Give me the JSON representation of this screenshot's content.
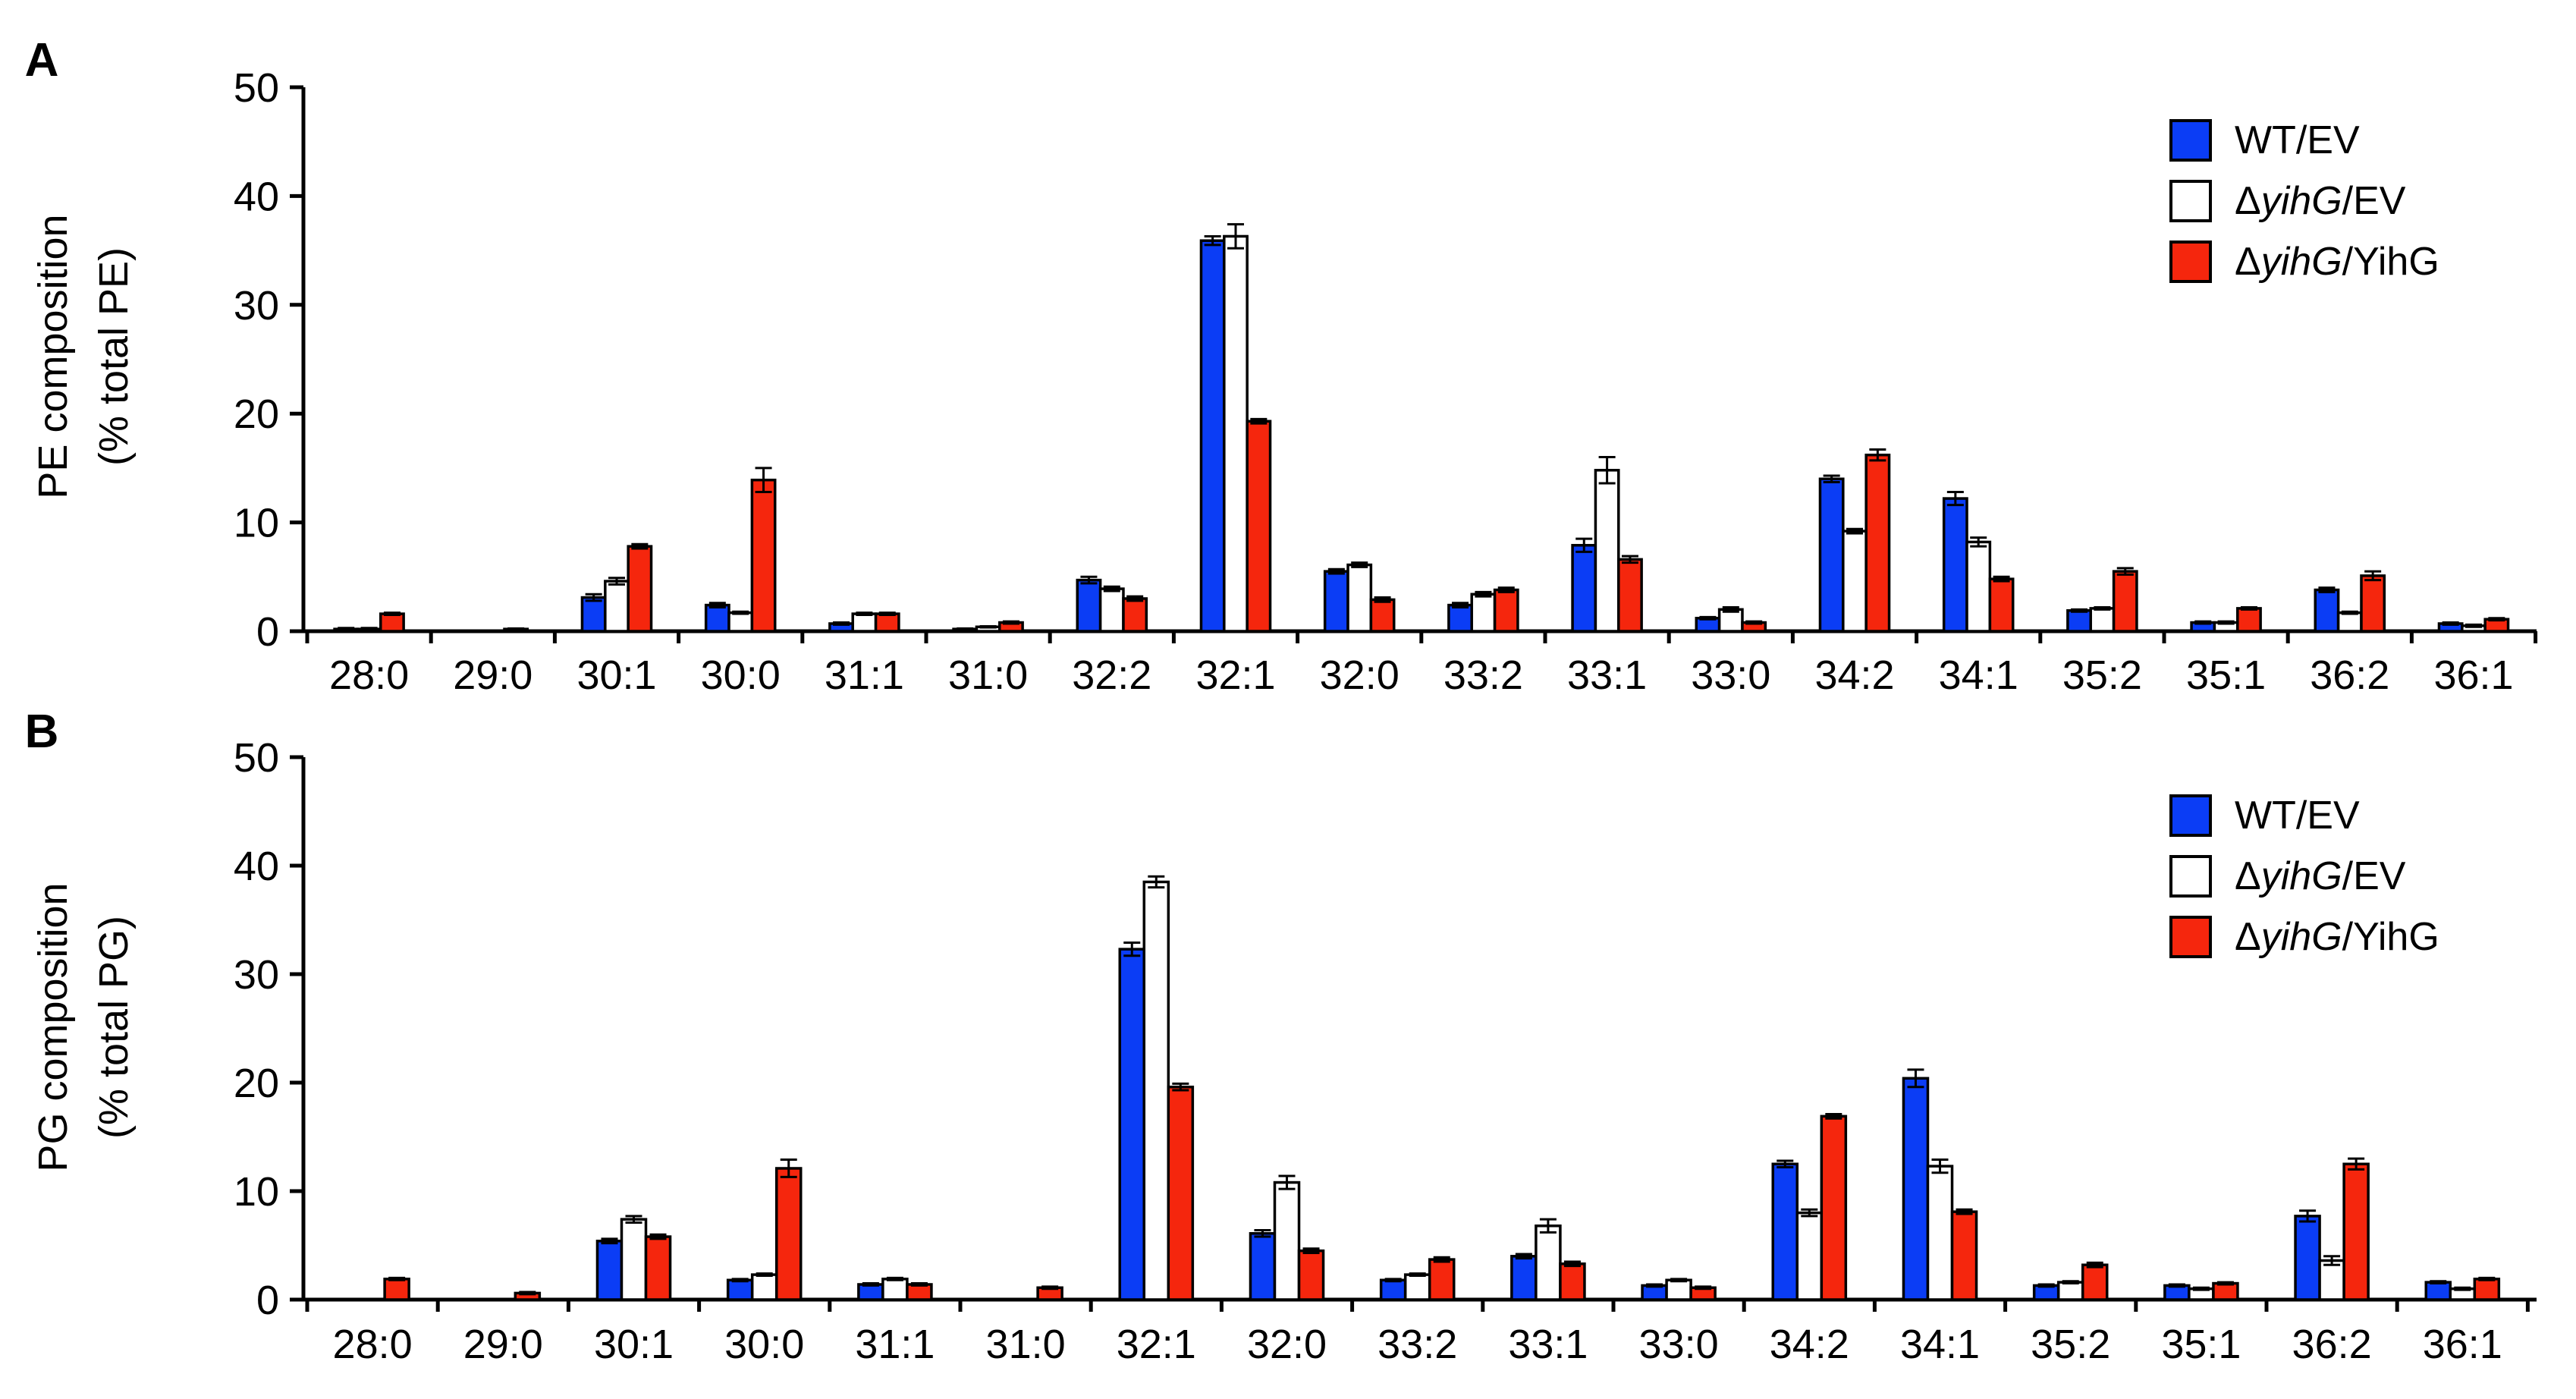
{
  "colors": {
    "WT/EV": "#0b3df5",
    "ΔyihG/EV": "#ffffff",
    "ΔyihG/YihG": "#f5260d",
    "axis": "#000000"
  },
  "legend": [
    {
      "prefix": "",
      "italic": "",
      "suffix": "WT/EV",
      "color": "#0b3df5"
    },
    {
      "prefix": "Δ",
      "italic": "yihG",
      "suffix": "/EV",
      "color": "#ffffff"
    },
    {
      "prefix": "Δ",
      "italic": "yihG",
      "suffix": "/YihG",
      "color": "#f5260d"
    }
  ],
  "chart_data": [
    {
      "type": "bar",
      "panel_label": "A",
      "ylabel": "PE composition",
      "ylabel2": "(% total PE)",
      "ylim": [
        0,
        50
      ],
      "yticks": [
        0,
        10,
        20,
        30,
        40,
        50
      ],
      "legend_placement": "top-right",
      "categories": [
        "28:0",
        "29:0",
        "30:1",
        "30:0",
        "31:1",
        "31:0",
        "32:2",
        "32:1",
        "32:0",
        "33:2",
        "33:1",
        "33:0",
        "34:2",
        "34:1",
        "35:2",
        "35:1",
        "36:2",
        "36:1"
      ],
      "series": [
        {
          "name": "WT/EV",
          "values": [
            0.2,
            0.0,
            3.1,
            2.4,
            0.7,
            0.2,
            4.7,
            35.9,
            5.5,
            2.4,
            7.9,
            1.2,
            14.0,
            12.2,
            1.9,
            0.8,
            3.8,
            0.7
          ],
          "errors": [
            0.1,
            0.0,
            0.3,
            0.2,
            0.1,
            0.05,
            0.3,
            0.4,
            0.2,
            0.2,
            0.6,
            0.1,
            0.3,
            0.6,
            0.1,
            0.1,
            0.2,
            0.1
          ]
        },
        {
          "name": "ΔyihG/EV",
          "values": [
            0.2,
            0.0,
            4.6,
            1.7,
            1.6,
            0.4,
            3.9,
            36.3,
            6.1,
            3.4,
            14.8,
            2.0,
            9.2,
            8.2,
            2.1,
            0.8,
            1.7,
            0.5
          ],
          "errors": [
            0.1,
            0.0,
            0.3,
            0.1,
            0.1,
            0.05,
            0.2,
            1.1,
            0.2,
            0.2,
            1.2,
            0.2,
            0.2,
            0.4,
            0.1,
            0.1,
            0.1,
            0.1
          ]
        },
        {
          "name": "ΔyihG/YihG",
          "values": [
            1.6,
            0.2,
            7.8,
            13.9,
            1.6,
            0.8,
            3.0,
            19.3,
            2.9,
            3.8,
            6.6,
            0.8,
            16.2,
            4.8,
            5.5,
            2.1,
            5.1,
            1.1
          ],
          "errors": [
            0.1,
            0.05,
            0.2,
            1.1,
            0.1,
            0.1,
            0.2,
            0.2,
            0.2,
            0.2,
            0.3,
            0.1,
            0.5,
            0.2,
            0.3,
            0.1,
            0.4,
            0.1
          ]
        }
      ]
    },
    {
      "type": "bar",
      "panel_label": "B",
      "ylabel": "PG composition",
      "ylabel2": "(% total PG)",
      "ylim": [
        0,
        50
      ],
      "yticks": [
        0,
        10,
        20,
        30,
        40,
        50
      ],
      "legend_placement": "top-right",
      "categories": [
        "28:0",
        "29:0",
        "30:1",
        "30:0",
        "31:1",
        "31:0",
        "32:1",
        "32:0",
        "33:2",
        "33:1",
        "33:0",
        "34:2",
        "34:1",
        "35:2",
        "35:1",
        "36:2",
        "36:1"
      ],
      "series": [
        {
          "name": "WT/EV",
          "values": [
            0.0,
            0.0,
            5.4,
            1.8,
            1.4,
            0.0,
            32.3,
            6.1,
            1.8,
            4.0,
            1.3,
            12.5,
            20.4,
            1.3,
            1.3,
            7.7,
            1.6
          ],
          "errors": [
            0.0,
            0.0,
            0.2,
            0.1,
            0.1,
            0.0,
            0.6,
            0.3,
            0.1,
            0.2,
            0.1,
            0.3,
            0.8,
            0.1,
            0.1,
            0.5,
            0.1
          ]
        },
        {
          "name": "ΔyihG/EV",
          "values": [
            0.0,
            0.0,
            7.4,
            2.3,
            1.9,
            0.0,
            38.5,
            10.8,
            2.3,
            6.8,
            1.8,
            8.0,
            12.3,
            1.6,
            1.0,
            3.6,
            1.0
          ],
          "errors": [
            0.0,
            0.0,
            0.3,
            0.1,
            0.1,
            0.0,
            0.5,
            0.6,
            0.1,
            0.6,
            0.1,
            0.3,
            0.6,
            0.1,
            0.1,
            0.4,
            0.1
          ]
        },
        {
          "name": "ΔyihG/YihG",
          "values": [
            1.9,
            0.6,
            5.8,
            12.1,
            1.4,
            1.1,
            19.6,
            4.5,
            3.7,
            3.3,
            1.1,
            16.9,
            8.1,
            3.2,
            1.5,
            12.5,
            1.9
          ],
          "errors": [
            0.1,
            0.1,
            0.2,
            0.8,
            0.1,
            0.1,
            0.3,
            0.2,
            0.2,
            0.2,
            0.1,
            0.2,
            0.2,
            0.2,
            0.1,
            0.5,
            0.1
          ]
        }
      ]
    }
  ]
}
